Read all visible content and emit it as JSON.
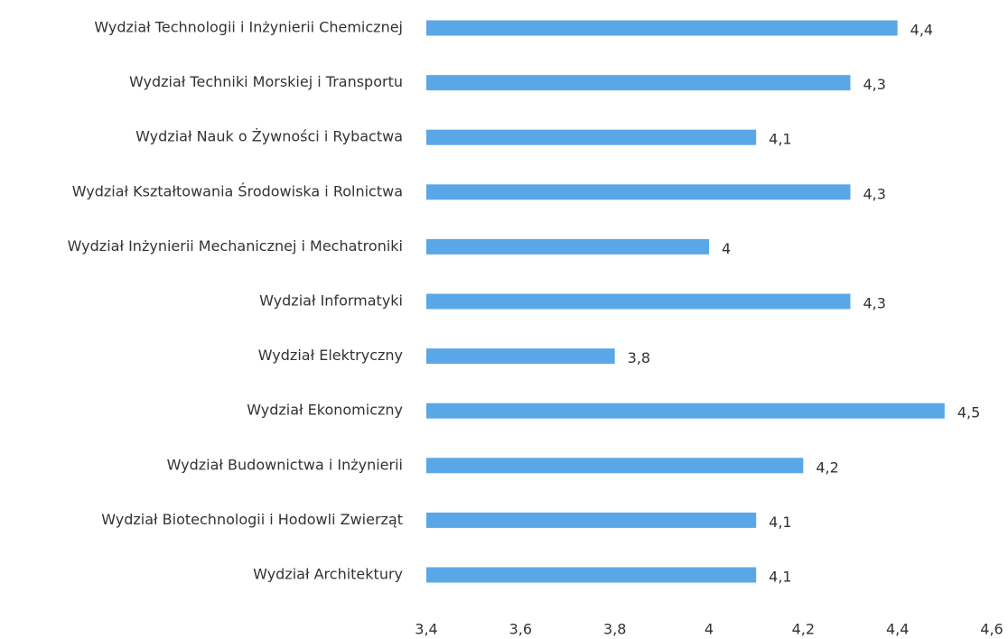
{
  "chart_data": {
    "type": "barh",
    "categories": [
      "Wydział Technologii i Inżynierii Chemicznej",
      "Wydział Techniki Morskiej i Transportu",
      "Wydział Nauk o Żywności i Rybactwa",
      "Wydział Kształtowania Środowiska i Rolnictwa",
      "Wydział Inżynierii Mechanicznej i Mechatroniki",
      "Wydział Informatyki",
      "Wydział Elektryczny",
      "Wydział Ekonomiczny",
      "Wydział Budownictwa i Inżynierii",
      "Wydział Biotechnologii i Hodowli Zwierząt",
      "Wydział Architektury"
    ],
    "values": [
      4.4,
      4.3,
      4.1,
      4.3,
      4,
      4.3,
      3.8,
      4.5,
      4.2,
      4.1,
      4.1
    ],
    "value_labels": [
      "4,4",
      "4,3",
      "4,1",
      "4,3",
      "4",
      "4,3",
      "3,8",
      "4,5",
      "4,2",
      "4,1",
      "4,1"
    ],
    "color": "#5aa7e8",
    "xlim": [
      3.4,
      4.6
    ],
    "xticks": [
      {
        "value": 3.4,
        "label": "3,4"
      },
      {
        "value": 3.6,
        "label": "3,6"
      },
      {
        "value": 3.8,
        "label": "3,8"
      },
      4,
      {
        "value": 4.2,
        "label": "4,2"
      },
      {
        "value": 4.4,
        "label": "4,4"
      },
      {
        "value": 4.6,
        "label": "4,6"
      }
    ],
    "grid": false
  }
}
